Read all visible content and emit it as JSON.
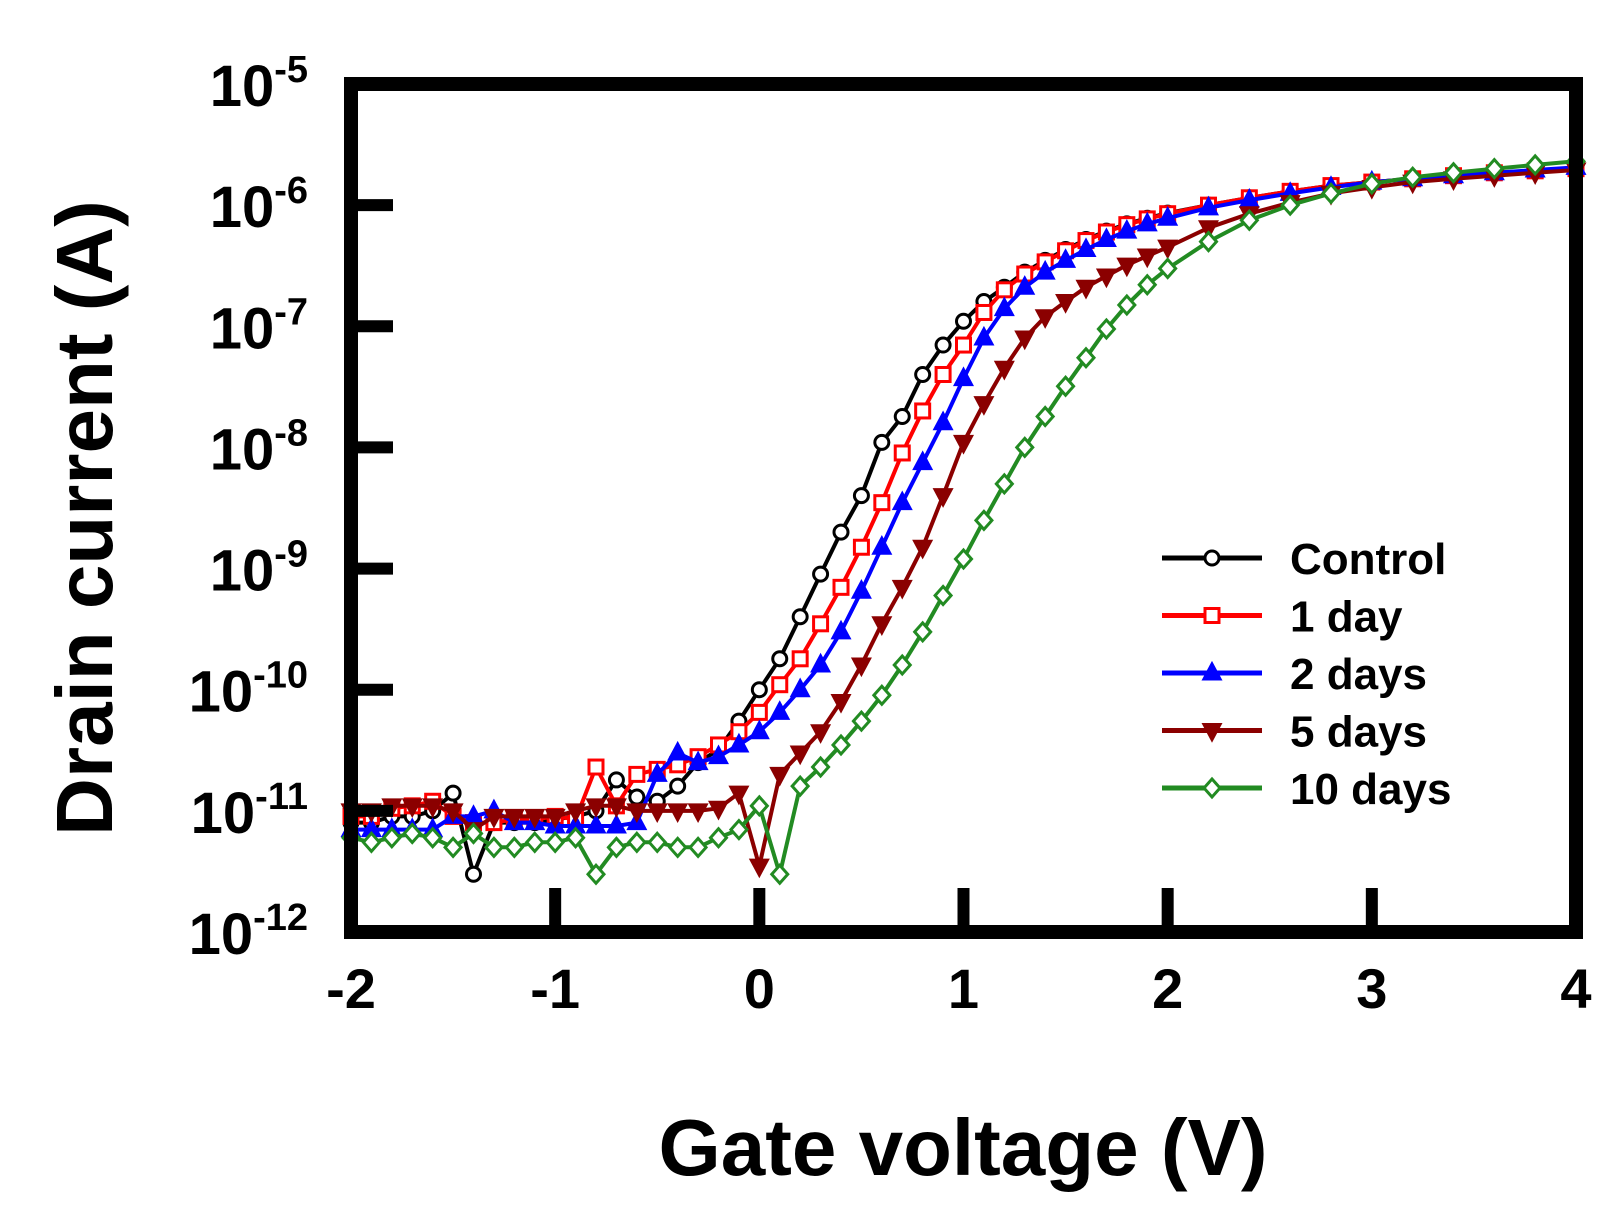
{
  "chart_data": {
    "type": "line",
    "title": "",
    "xlabel": "Gate voltage (V)",
    "ylabel": "Drain current (A)",
    "xlim": [
      -2,
      4
    ],
    "ylim": [
      1e-12,
      1e-05
    ],
    "yscale": "log",
    "grid": false,
    "legend_position": "right",
    "x_ticks": [
      {
        "value": -2,
        "label": "-2"
      },
      {
        "value": -1,
        "label": "-1"
      },
      {
        "value": 0,
        "label": "0"
      },
      {
        "value": 1,
        "label": "1"
      },
      {
        "value": 2,
        "label": "2"
      },
      {
        "value": 3,
        "label": "3"
      },
      {
        "value": 4,
        "label": "4"
      }
    ],
    "y_ticks": [
      {
        "value": 1e-12,
        "base": "10",
        "exp": "-12"
      },
      {
        "value": 1e-11,
        "base": "10",
        "exp": "-11"
      },
      {
        "value": 1e-10,
        "base": "10",
        "exp": "-10"
      },
      {
        "value": 1e-09,
        "base": "10",
        "exp": "-9"
      },
      {
        "value": 1e-08,
        "base": "10",
        "exp": "-8"
      },
      {
        "value": 1e-07,
        "base": "10",
        "exp": "-7"
      },
      {
        "value": 1e-06,
        "base": "10",
        "exp": "-6"
      },
      {
        "value": 1e-05,
        "base": "10",
        "exp": "-5"
      }
    ],
    "series": [
      {
        "name": "Control",
        "color": "#000000",
        "marker": "circle",
        "points": [
          [
            -2,
            8e-12
          ],
          [
            -1.9,
            8e-12
          ],
          [
            -1.8,
            9e-12
          ],
          [
            -1.7,
            9e-12
          ],
          [
            -1.6,
            1e-11
          ],
          [
            -1.5,
            1.4e-11
          ],
          [
            -1.4,
            3e-12
          ],
          [
            -1.3,
            8e-12
          ],
          [
            -1.2,
            8e-12
          ],
          [
            -1.1,
            8e-12
          ],
          [
            -1,
            8.5e-12
          ],
          [
            -0.9,
            9e-12
          ],
          [
            -0.8,
            1e-11
          ],
          [
            -0.7,
            1.8e-11
          ],
          [
            -0.6,
            1.3e-11
          ],
          [
            -0.5,
            1.2e-11
          ],
          [
            -0.4,
            1.6e-11
          ],
          [
            -0.3,
            2.5e-11
          ],
          [
            -0.2,
            3.2e-11
          ],
          [
            -0.1,
            5.5e-11
          ],
          [
            0,
            1e-10
          ],
          [
            0.1,
            1.8e-10
          ],
          [
            0.2,
            4e-10
          ],
          [
            0.3,
            9e-10
          ],
          [
            0.4,
            2e-09
          ],
          [
            0.5,
            4e-09
          ],
          [
            0.6,
            1.1e-08
          ],
          [
            0.7,
            1.8e-08
          ],
          [
            0.8,
            4e-08
          ],
          [
            0.9,
            7e-08
          ],
          [
            1,
            1.1e-07
          ],
          [
            1.1,
            1.6e-07
          ],
          [
            1.2,
            2.1e-07
          ],
          [
            1.3,
            2.8e-07
          ],
          [
            1.4,
            3.5e-07
          ],
          [
            1.5,
            4.3e-07
          ],
          [
            1.6,
            5.2e-07
          ],
          [
            1.7,
            6.1e-07
          ],
          [
            1.8,
            7e-07
          ],
          [
            1.9,
            7.8e-07
          ],
          [
            2,
            8.6e-07
          ],
          [
            2.2,
            1e-06
          ],
          [
            2.4,
            1.15e-06
          ],
          [
            2.6,
            1.3e-06
          ],
          [
            2.8,
            1.45e-06
          ],
          [
            3,
            1.55e-06
          ],
          [
            3.2,
            1.65e-06
          ],
          [
            3.4,
            1.75e-06
          ],
          [
            3.6,
            1.85e-06
          ],
          [
            3.8,
            1.92e-06
          ],
          [
            4,
            2e-06
          ]
        ]
      },
      {
        "name": "1 day",
        "color": "#ff0000",
        "marker": "square",
        "points": [
          [
            -2,
            9e-12
          ],
          [
            -1.9,
            9e-12
          ],
          [
            -1.8,
            1.05e-11
          ],
          [
            -1.7,
            1.1e-11
          ],
          [
            -1.6,
            1.2e-11
          ],
          [
            -1.5,
            9e-12
          ],
          [
            -1.4,
            8e-12
          ],
          [
            -1.3,
            8e-12
          ],
          [
            -1.2,
            8.5e-12
          ],
          [
            -1.1,
            8.5e-12
          ],
          [
            -1,
            9e-12
          ],
          [
            -0.9,
            8.5e-12
          ],
          [
            -0.8,
            2.3e-11
          ],
          [
            -0.7,
            1.1e-11
          ],
          [
            -0.6,
            2e-11
          ],
          [
            -0.5,
            2.2e-11
          ],
          [
            -0.4,
            2.4e-11
          ],
          [
            -0.3,
            2.8e-11
          ],
          [
            -0.2,
            3.5e-11
          ],
          [
            -0.1,
            4.5e-11
          ],
          [
            0,
            6.5e-11
          ],
          [
            0.1,
            1.1e-10
          ],
          [
            0.2,
            1.8e-10
          ],
          [
            0.3,
            3.5e-10
          ],
          [
            0.4,
            7e-10
          ],
          [
            0.5,
            1.5e-09
          ],
          [
            0.6,
            3.5e-09
          ],
          [
            0.7,
            9e-09
          ],
          [
            0.8,
            2e-08
          ],
          [
            0.9,
            4e-08
          ],
          [
            1,
            7e-08
          ],
          [
            1.1,
            1.3e-07
          ],
          [
            1.2,
            2e-07
          ],
          [
            1.3,
            2.7e-07
          ],
          [
            1.4,
            3.4e-07
          ],
          [
            1.5,
            4.2e-07
          ],
          [
            1.6,
            5.1e-07
          ],
          [
            1.7,
            6e-07
          ],
          [
            1.8,
            6.9e-07
          ],
          [
            1.9,
            7.7e-07
          ],
          [
            2,
            8.5e-07
          ],
          [
            2.2,
            1e-06
          ],
          [
            2.4,
            1.15e-06
          ],
          [
            2.6,
            1.3e-06
          ],
          [
            2.8,
            1.45e-06
          ],
          [
            3,
            1.55e-06
          ],
          [
            3.2,
            1.65e-06
          ],
          [
            3.4,
            1.75e-06
          ],
          [
            3.6,
            1.85e-06
          ],
          [
            3.8,
            1.92e-06
          ],
          [
            4,
            2e-06
          ]
        ]
      },
      {
        "name": "2 days",
        "color": "#0000ff",
        "marker": "triangle-up",
        "points": [
          [
            -2,
            7e-12
          ],
          [
            -1.9,
            7e-12
          ],
          [
            -1.8,
            7e-12
          ],
          [
            -1.7,
            7e-12
          ],
          [
            -1.6,
            7e-12
          ],
          [
            -1.5,
            9e-12
          ],
          [
            -1.4,
            9e-12
          ],
          [
            -1.3,
            1e-11
          ],
          [
            -1.2,
            8e-12
          ],
          [
            -1.1,
            8e-12
          ],
          [
            -1,
            7.5e-12
          ],
          [
            -0.9,
            7.5e-12
          ],
          [
            -0.8,
            7.5e-12
          ],
          [
            -0.7,
            7.5e-12
          ],
          [
            -0.6,
            8e-12
          ],
          [
            -0.5,
            2e-11
          ],
          [
            -0.4,
            3e-11
          ],
          [
            -0.3,
            2.5e-11
          ],
          [
            -0.2,
            2.8e-11
          ],
          [
            -0.1,
            3.5e-11
          ],
          [
            0,
            4.5e-11
          ],
          [
            0.1,
            6.5e-11
          ],
          [
            0.2,
            1e-10
          ],
          [
            0.3,
            1.6e-10
          ],
          [
            0.4,
            3e-10
          ],
          [
            0.5,
            6.5e-10
          ],
          [
            0.6,
            1.5e-09
          ],
          [
            0.7,
            3.5e-09
          ],
          [
            0.8,
            7.5e-09
          ],
          [
            0.9,
            1.6e-08
          ],
          [
            1,
            3.7e-08
          ],
          [
            1.1,
            8e-08
          ],
          [
            1.2,
            1.4e-07
          ],
          [
            1.3,
            2.1e-07
          ],
          [
            1.4,
            2.8e-07
          ],
          [
            1.5,
            3.5e-07
          ],
          [
            1.6,
            4.3e-07
          ],
          [
            1.7,
            5.2e-07
          ],
          [
            1.8,
            6.1e-07
          ],
          [
            1.9,
            7e-07
          ],
          [
            2,
            7.8e-07
          ],
          [
            2.2,
            9.5e-07
          ],
          [
            2.4,
            1.1e-06
          ],
          [
            2.6,
            1.25e-06
          ],
          [
            2.8,
            1.4e-06
          ],
          [
            3,
            1.55e-06
          ],
          [
            3.2,
            1.65e-06
          ],
          [
            3.4,
            1.75e-06
          ],
          [
            3.6,
            1.85e-06
          ],
          [
            3.8,
            1.95e-06
          ],
          [
            4,
            2.05e-06
          ]
        ]
      },
      {
        "name": "5 days",
        "color": "#8b0000",
        "marker": "triangle-down",
        "points": [
          [
            -2,
            1e-11
          ],
          [
            -1.9,
            1e-11
          ],
          [
            -1.8,
            1.1e-11
          ],
          [
            -1.7,
            1.1e-11
          ],
          [
            -1.6,
            1.1e-11
          ],
          [
            -1.5,
            1e-11
          ],
          [
            -1.4,
            7e-12
          ],
          [
            -1.3,
            9e-12
          ],
          [
            -1.2,
            9e-12
          ],
          [
            -1.1,
            9e-12
          ],
          [
            -1,
            9e-12
          ],
          [
            -0.9,
            1e-11
          ],
          [
            -0.8,
            1.1e-11
          ],
          [
            -0.7,
            1.1e-11
          ],
          [
            -0.6,
            1e-11
          ],
          [
            -0.5,
            1e-11
          ],
          [
            -0.4,
            1e-11
          ],
          [
            -0.3,
            1e-11
          ],
          [
            -0.2,
            1.05e-11
          ],
          [
            -0.1,
            1.4e-11
          ],
          [
            0,
            3.5e-12
          ],
          [
            0.1,
            2e-11
          ],
          [
            0.2,
            3e-11
          ],
          [
            0.3,
            4.5e-11
          ],
          [
            0.4,
            8e-11
          ],
          [
            0.5,
            1.6e-10
          ],
          [
            0.6,
            3.5e-10
          ],
          [
            0.7,
            7e-10
          ],
          [
            0.8,
            1.5e-09
          ],
          [
            0.9,
            4e-09
          ],
          [
            1,
            1.1e-08
          ],
          [
            1.1,
            2.3e-08
          ],
          [
            1.2,
            4.5e-08
          ],
          [
            1.3,
            8e-08
          ],
          [
            1.4,
            1.2e-07
          ],
          [
            1.5,
            1.6e-07
          ],
          [
            1.6,
            2.1e-07
          ],
          [
            1.7,
            2.6e-07
          ],
          [
            1.8,
            3.2e-07
          ],
          [
            1.9,
            3.8e-07
          ],
          [
            2,
            4.5e-07
          ],
          [
            2.2,
            6.5e-07
          ],
          [
            2.4,
            8.5e-07
          ],
          [
            2.6,
            1.05e-06
          ],
          [
            2.8,
            1.25e-06
          ],
          [
            3,
            1.4e-06
          ],
          [
            3.2,
            1.55e-06
          ],
          [
            3.4,
            1.65e-06
          ],
          [
            3.6,
            1.75e-06
          ],
          [
            3.8,
            1.85e-06
          ],
          [
            4,
            1.95e-06
          ]
        ]
      },
      {
        "name": "10 days",
        "color": "#228b22",
        "marker": "diamond",
        "points": [
          [
            -2,
            6e-12
          ],
          [
            -1.9,
            5.5e-12
          ],
          [
            -1.8,
            6e-12
          ],
          [
            -1.7,
            6.5e-12
          ],
          [
            -1.6,
            6e-12
          ],
          [
            -1.5,
            5e-12
          ],
          [
            -1.4,
            6.5e-12
          ],
          [
            -1.3,
            5e-12
          ],
          [
            -1.2,
            5e-12
          ],
          [
            -1.1,
            5.5e-12
          ],
          [
            -1,
            5.5e-12
          ],
          [
            -0.9,
            6e-12
          ],
          [
            -0.8,
            3e-12
          ],
          [
            -0.7,
            5e-12
          ],
          [
            -0.6,
            5.5e-12
          ],
          [
            -0.5,
            5.5e-12
          ],
          [
            -0.4,
            5e-12
          ],
          [
            -0.3,
            5e-12
          ],
          [
            -0.2,
            6e-12
          ],
          [
            -0.1,
            7e-12
          ],
          [
            0,
            1.1e-11
          ],
          [
            0.1,
            3e-12
          ],
          [
            0.2,
            1.6e-11
          ],
          [
            0.3,
            2.3e-11
          ],
          [
            0.4,
            3.5e-11
          ],
          [
            0.5,
            5.5e-11
          ],
          [
            0.6,
            9e-11
          ],
          [
            0.7,
            1.6e-10
          ],
          [
            0.8,
            3e-10
          ],
          [
            0.9,
            6e-10
          ],
          [
            1,
            1.2e-09
          ],
          [
            1.1,
            2.5e-09
          ],
          [
            1.2,
            5e-09
          ],
          [
            1.3,
            1e-08
          ],
          [
            1.4,
            1.8e-08
          ],
          [
            1.5,
            3.2e-08
          ],
          [
            1.6,
            5.5e-08
          ],
          [
            1.7,
            9.5e-08
          ],
          [
            1.8,
            1.5e-07
          ],
          [
            1.9,
            2.2e-07
          ],
          [
            2,
            3e-07
          ],
          [
            2.2,
            5e-07
          ],
          [
            2.4,
            7.5e-07
          ],
          [
            2.6,
            1e-06
          ],
          [
            2.8,
            1.25e-06
          ],
          [
            3,
            1.5e-06
          ],
          [
            3.2,
            1.7e-06
          ],
          [
            3.4,
            1.85e-06
          ],
          [
            3.6,
            2e-06
          ],
          [
            3.8,
            2.15e-06
          ],
          [
            4,
            2.3e-06
          ]
        ]
      }
    ]
  }
}
